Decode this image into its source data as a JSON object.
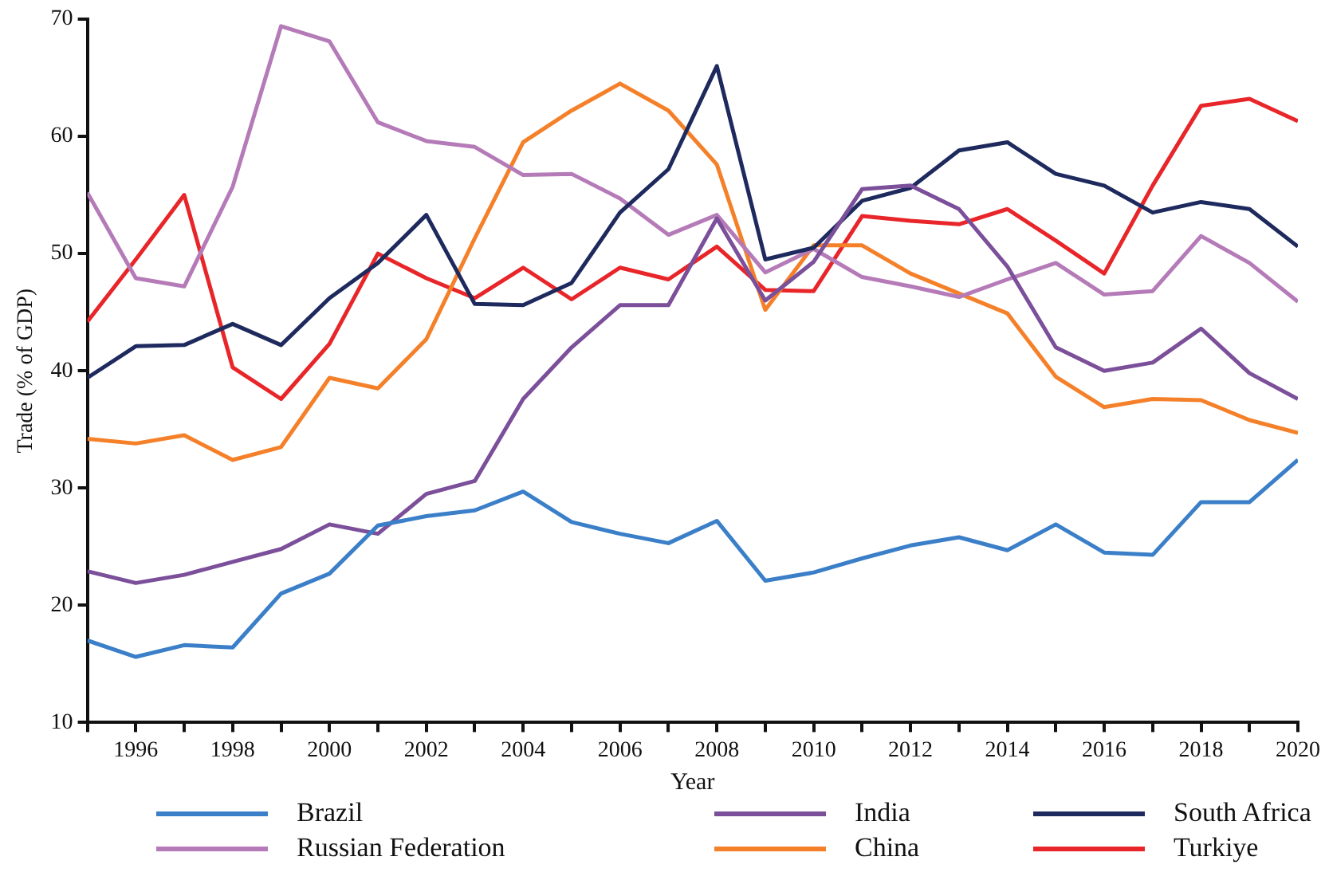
{
  "chart_data": {
    "type": "line",
    "xlabel": "Year",
    "ylabel": "Trade (% of GDP)",
    "x": [
      1995,
      1996,
      1997,
      1998,
      1999,
      2000,
      2001,
      2002,
      2003,
      2004,
      2005,
      2006,
      2007,
      2008,
      2009,
      2010,
      2011,
      2012,
      2013,
      2014,
      2015,
      2016,
      2017,
      2018,
      2019,
      2020
    ],
    "xlim": [
      1995,
      2020
    ],
    "xticks": [
      {
        "value": 1995,
        "label": null
      },
      1996,
      {
        "value": 1997,
        "label": null
      },
      1998,
      {
        "value": 1999,
        "label": null
      },
      2000,
      {
        "value": 2001,
        "label": null
      },
      2002,
      {
        "value": 2003,
        "label": null
      },
      2004,
      {
        "value": 2005,
        "label": null
      },
      2006,
      {
        "value": 2007,
        "label": null
      },
      2008,
      {
        "value": 2009,
        "label": null
      },
      2010,
      {
        "value": 2011,
        "label": null
      },
      2012,
      {
        "value": 2013,
        "label": null
      },
      2014,
      {
        "value": 2015,
        "label": null
      },
      2016,
      {
        "value": 2017,
        "label": null
      },
      2018,
      {
        "value": 2019,
        "label": null
      },
      2020
    ],
    "ylim": [
      10,
      70
    ],
    "yticks": [
      10,
      20,
      30,
      40,
      50,
      60,
      70
    ],
    "grid": false,
    "legend": "bottom",
    "marker": "none",
    "line_style": "solid",
    "series": [
      {
        "name": "Brazil",
        "color": "#3a7fc8",
        "values": [
          17,
          15.6,
          16.6,
          16.4,
          21,
          22.7,
          26.8,
          27.6,
          28.1,
          29.7,
          27.1,
          26.1,
          25.3,
          27.2,
          22.1,
          22.8,
          24,
          25.1,
          25.8,
          24.7,
          26.9,
          24.5,
          24.3,
          28.8,
          28.8,
          32.4
        ]
      },
      {
        "name": "India",
        "color": "#7b4f9a",
        "values": [
          22.9,
          21.9,
          22.6,
          23.7,
          24.8,
          26.9,
          26.1,
          29.5,
          30.6,
          37.6,
          42,
          45.6,
          45.6,
          53,
          46,
          49.3,
          55.5,
          55.8,
          53.8,
          48.9,
          42,
          40,
          40.7,
          43.6,
          39.8,
          37.6
        ]
      },
      {
        "name": "South Africa",
        "color": "#1e2a5e",
        "values": [
          39.4,
          42.1,
          42.2,
          44,
          42.2,
          46.2,
          49.2,
          53.3,
          45.7,
          45.6,
          47.5,
          53.5,
          57.2,
          66,
          49.5,
          50.5,
          54.5,
          55.6,
          58.8,
          59.5,
          56.8,
          55.8,
          53.5,
          54.4,
          53.8,
          50.6
        ]
      },
      {
        "name": "Russian Federation",
        "color": "#b57bb8",
        "values": [
          55.2,
          47.9,
          47.2,
          55.7,
          69.4,
          68.1,
          61.2,
          59.6,
          59.1,
          56.7,
          56.8,
          54.7,
          51.6,
          53.3,
          48.4,
          50.4,
          48,
          47.2,
          46.3,
          47.8,
          49.2,
          46.5,
          46.8,
          51.5,
          49.2,
          45.9
        ]
      },
      {
        "name": "China",
        "color": "#f5802a",
        "values": [
          34.2,
          33.8,
          34.5,
          32.4,
          33.5,
          39.4,
          38.5,
          42.7,
          51.3,
          59.5,
          62.2,
          64.5,
          62.2,
          57.6,
          45.2,
          50.7,
          50.7,
          48.3,
          46.6,
          44.9,
          39.5,
          36.9,
          37.6,
          37.5,
          35.8,
          34.7
        ]
      },
      {
        "name": "Turkiye",
        "color": "#e8262a",
        "values": [
          44.2,
          49.5,
          55,
          40.3,
          37.6,
          42.3,
          50,
          47.9,
          46.2,
          48.8,
          46.1,
          48.8,
          47.8,
          50.6,
          46.9,
          46.8,
          53.2,
          52.8,
          52.5,
          53.8,
          51.1,
          48.3,
          55.8,
          62.6,
          63.2,
          61.3
        ]
      }
    ]
  }
}
